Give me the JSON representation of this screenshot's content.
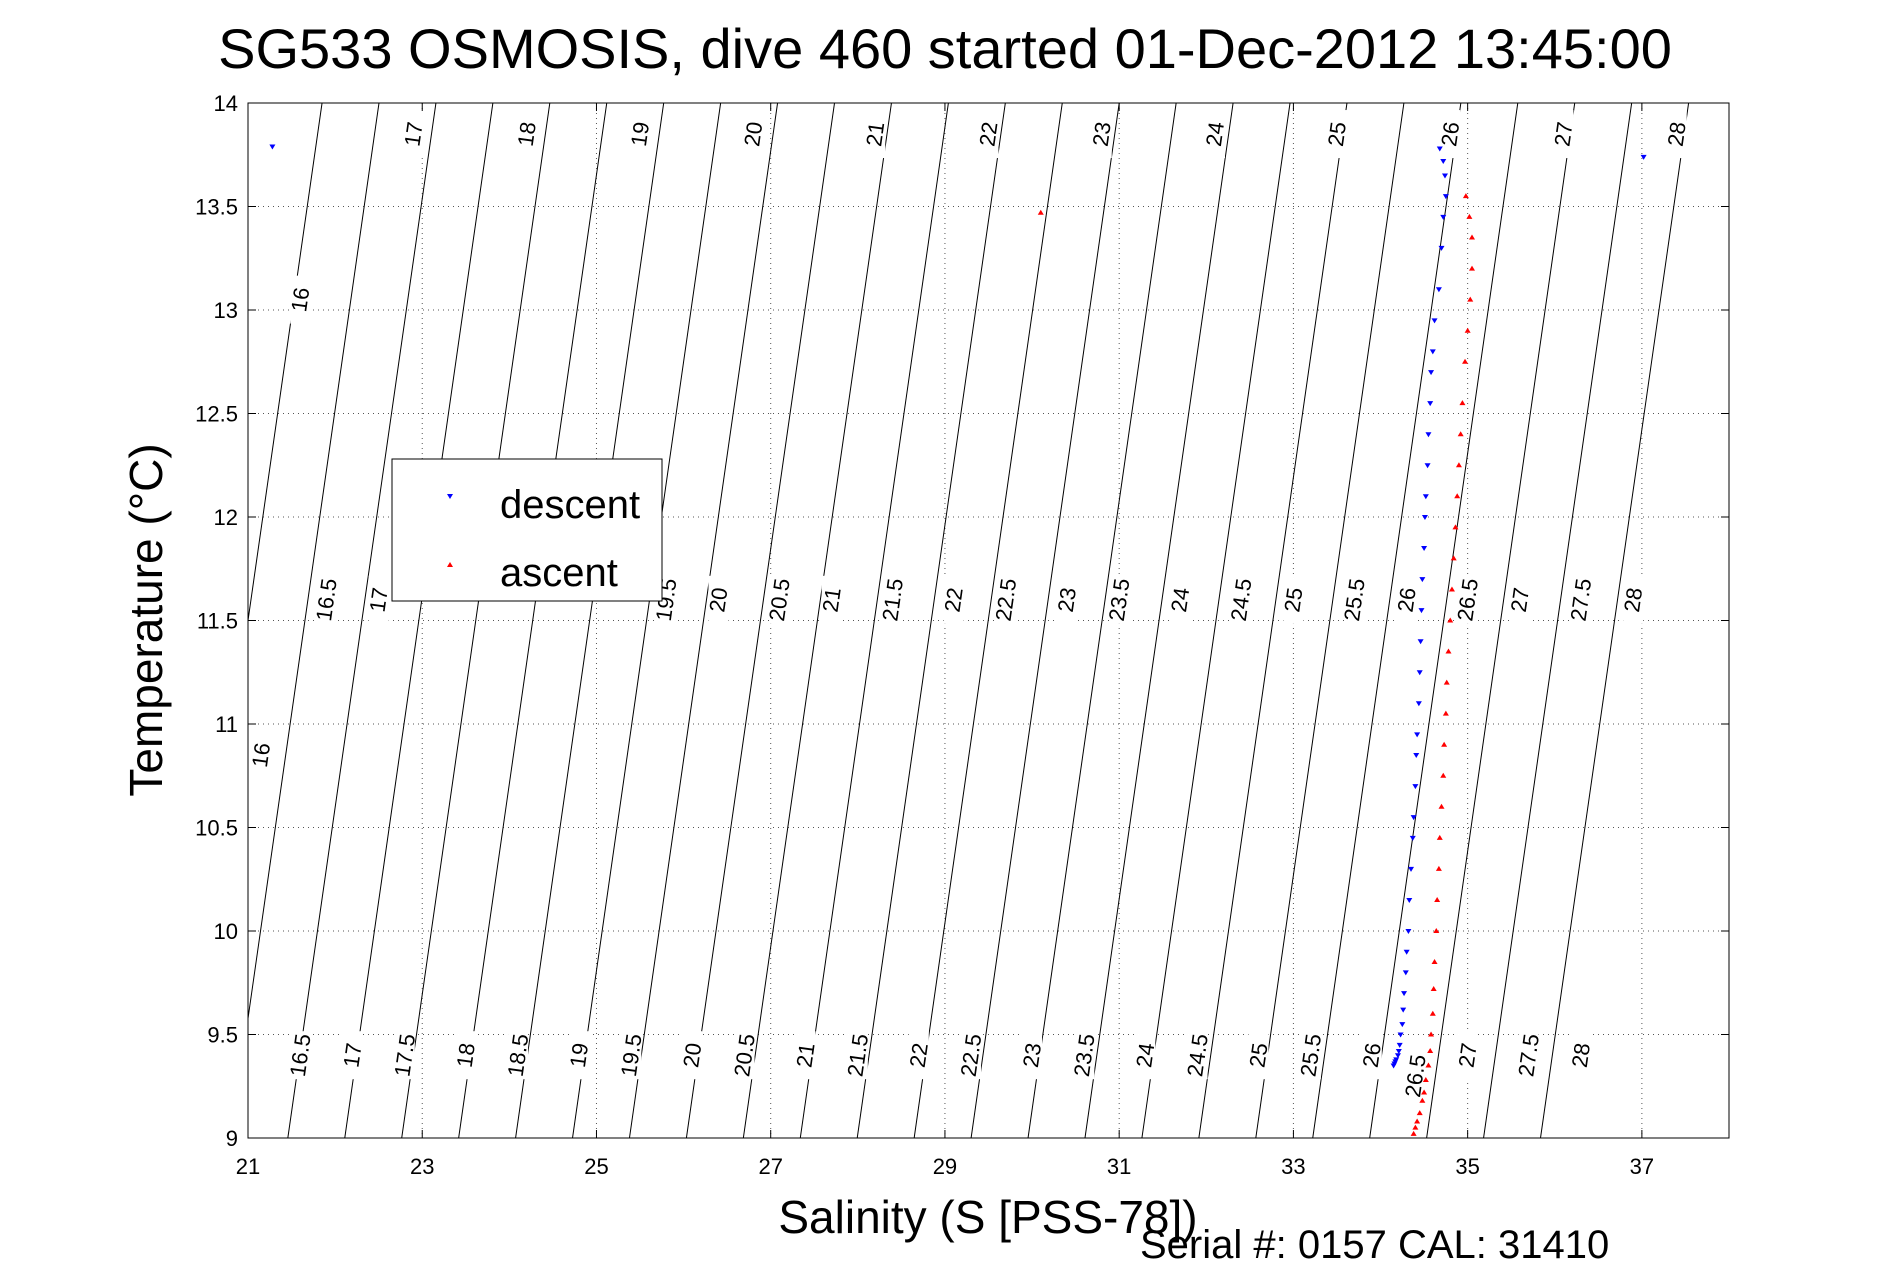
{
  "chart_data": {
    "type": "scatter",
    "title": "SG533 OSMOSIS, dive 460 started 01-Dec-2012 13:45:00",
    "xlabel": "Salinity (S [PSS-78])",
    "ylabel": "Temperature (°C)",
    "xlim": [
      21,
      38
    ],
    "ylim": [
      9,
      14
    ],
    "xticks": [
      21,
      23,
      25,
      27,
      29,
      31,
      33,
      35,
      37
    ],
    "xtick_labels": [
      "21",
      "23",
      "25",
      "27",
      "29",
      "31",
      "33",
      "35",
      "37"
    ],
    "yticks": [
      9,
      9.5,
      10,
      10.5,
      11,
      11.5,
      12,
      12.5,
      13,
      13.5,
      14
    ],
    "ytick_labels": [
      "9",
      "9.5",
      "10",
      "10.5",
      "11",
      "11.5",
      "12",
      "12.5",
      "13",
      "13.5",
      "14"
    ],
    "grid": true,
    "legend_position": "center-left",
    "footnote": "Serial #: 0157  CAL: 31410",
    "isopycnals": {
      "levels": [
        16,
        16.5,
        17,
        17.5,
        18,
        18.5,
        19,
        19.5,
        20,
        20.5,
        21,
        21.5,
        22,
        22.5,
        23,
        23.5,
        24,
        24.5,
        25,
        25.5,
        26,
        26.5,
        27,
        27.5,
        28
      ],
      "labels": [
        {
          "text": "16",
          "x": 21.6,
          "y": 13.05
        },
        {
          "text": "17",
          "x": 22.9,
          "y": 13.85
        },
        {
          "text": "18",
          "x": 24.2,
          "y": 13.85
        },
        {
          "text": "19",
          "x": 25.5,
          "y": 13.85
        },
        {
          "text": "20",
          "x": 26.8,
          "y": 13.85
        },
        {
          "text": "21",
          "x": 28.2,
          "y": 13.85
        },
        {
          "text": "22",
          "x": 29.5,
          "y": 13.85
        },
        {
          "text": "23",
          "x": 30.8,
          "y": 13.85
        },
        {
          "text": "24",
          "x": 32.1,
          "y": 13.85
        },
        {
          "text": "25",
          "x": 33.5,
          "y": 13.85
        },
        {
          "text": "26",
          "x": 34.8,
          "y": 13.85
        },
        {
          "text": "27",
          "x": 36.1,
          "y": 13.85
        },
        {
          "text": "28",
          "x": 37.4,
          "y": 13.85
        },
        {
          "text": "16.5",
          "x": 21.9,
          "y": 11.6
        },
        {
          "text": "17",
          "x": 22.5,
          "y": 11.6
        },
        {
          "text": "19.5",
          "x": 25.8,
          "y": 11.6
        },
        {
          "text": "20",
          "x": 26.4,
          "y": 11.6
        },
        {
          "text": "20.5",
          "x": 27.1,
          "y": 11.6
        },
        {
          "text": "21",
          "x": 27.7,
          "y": 11.6
        },
        {
          "text": "21.5",
          "x": 28.4,
          "y": 11.6
        },
        {
          "text": "22",
          "x": 29.1,
          "y": 11.6
        },
        {
          "text": "22.5",
          "x": 29.7,
          "y": 11.6
        },
        {
          "text": "23",
          "x": 30.4,
          "y": 11.6
        },
        {
          "text": "23.5",
          "x": 31.0,
          "y": 11.6
        },
        {
          "text": "24",
          "x": 31.7,
          "y": 11.6
        },
        {
          "text": "24.5",
          "x": 32.4,
          "y": 11.6
        },
        {
          "text": "25",
          "x": 33.0,
          "y": 11.6
        },
        {
          "text": "25.5",
          "x": 33.7,
          "y": 11.6
        },
        {
          "text": "26",
          "x": 34.3,
          "y": 11.6
        },
        {
          "text": "26.5",
          "x": 35.0,
          "y": 11.6
        },
        {
          "text": "27",
          "x": 35.6,
          "y": 11.6
        },
        {
          "text": "27.5",
          "x": 36.3,
          "y": 11.6
        },
        {
          "text": "28",
          "x": 36.9,
          "y": 11.6
        },
        {
          "text": "16",
          "x": 21.15,
          "y": 10.85
        },
        {
          "text": "16.5",
          "x": 21.6,
          "y": 9.4
        },
        {
          "text": "17",
          "x": 22.2,
          "y": 9.4
        },
        {
          "text": "17.5",
          "x": 22.8,
          "y": 9.4
        },
        {
          "text": "18",
          "x": 23.5,
          "y": 9.4
        },
        {
          "text": "18.5",
          "x": 24.1,
          "y": 9.4
        },
        {
          "text": "19",
          "x": 24.8,
          "y": 9.4
        },
        {
          "text": "19.5",
          "x": 25.4,
          "y": 9.4
        },
        {
          "text": "20",
          "x": 26.1,
          "y": 9.4
        },
        {
          "text": "20.5",
          "x": 26.7,
          "y": 9.4
        },
        {
          "text": "21",
          "x": 27.4,
          "y": 9.4
        },
        {
          "text": "21.5",
          "x": 28.0,
          "y": 9.4
        },
        {
          "text": "22",
          "x": 28.7,
          "y": 9.4
        },
        {
          "text": "22.5",
          "x": 29.3,
          "y": 9.4
        },
        {
          "text": "23",
          "x": 30.0,
          "y": 9.4
        },
        {
          "text": "23.5",
          "x": 30.6,
          "y": 9.4
        },
        {
          "text": "24",
          "x": 31.3,
          "y": 9.4
        },
        {
          "text": "24.5",
          "x": 31.9,
          "y": 9.4
        },
        {
          "text": "25",
          "x": 32.6,
          "y": 9.4
        },
        {
          "text": "25.5",
          "x": 33.2,
          "y": 9.4
        },
        {
          "text": "26",
          "x": 33.9,
          "y": 9.4
        },
        {
          "text": "26.5",
          "x": 34.4,
          "y": 9.3
        },
        {
          "text": "27",
          "x": 35.0,
          "y": 9.4
        },
        {
          "text": "27.5",
          "x": 35.7,
          "y": 9.4
        },
        {
          "text": "28",
          "x": 36.3,
          "y": 9.4
        }
      ]
    },
    "series": [
      {
        "name": "descent",
        "color": "#0000ff",
        "marker": "triangle-down",
        "x": [
          34.68,
          34.72,
          34.74,
          34.75,
          34.72,
          34.7,
          34.67,
          34.62,
          34.6,
          34.58,
          34.57,
          34.55,
          34.54,
          34.52,
          34.51,
          34.5,
          34.48,
          34.47,
          34.46,
          34.45,
          34.44,
          34.42,
          34.41,
          34.4,
          34.38,
          34.37,
          34.35,
          34.33,
          34.32,
          34.3,
          34.29,
          34.27,
          34.26,
          34.25,
          34.23,
          34.22,
          34.21,
          34.2,
          34.18,
          34.17,
          34.16,
          34.15,
          21.28,
          37.02
        ],
        "y": [
          13.78,
          13.72,
          13.65,
          13.55,
          13.45,
          13.3,
          13.1,
          12.95,
          12.8,
          12.7,
          12.55,
          12.4,
          12.25,
          12.1,
          12.0,
          11.85,
          11.7,
          11.55,
          11.4,
          11.25,
          11.1,
          10.95,
          10.85,
          10.7,
          10.55,
          10.45,
          10.3,
          10.15,
          10.0,
          9.9,
          9.8,
          9.7,
          9.62,
          9.55,
          9.5,
          9.45,
          9.42,
          9.4,
          9.38,
          9.37,
          9.36,
          9.35,
          13.79,
          13.74
        ]
      },
      {
        "name": "ascent",
        "color": "#ff0000",
        "marker": "triangle-up",
        "x": [
          34.98,
          35.02,
          35.05,
          35.05,
          35.03,
          35.0,
          34.97,
          34.94,
          34.92,
          34.9,
          34.88,
          34.86,
          34.84,
          34.82,
          34.8,
          34.78,
          34.76,
          34.75,
          34.73,
          34.72,
          34.7,
          34.68,
          34.67,
          34.65,
          34.64,
          34.62,
          34.61,
          34.6,
          34.58,
          34.57,
          34.55,
          34.52,
          34.5,
          34.48,
          34.45,
          34.42,
          34.4,
          34.38,
          30.1
        ],
        "y": [
          13.55,
          13.45,
          13.35,
          13.2,
          13.05,
          12.9,
          12.75,
          12.55,
          12.4,
          12.25,
          12.1,
          11.95,
          11.8,
          11.65,
          11.5,
          11.35,
          11.2,
          11.05,
          10.9,
          10.75,
          10.6,
          10.45,
          10.3,
          10.15,
          10.0,
          9.85,
          9.72,
          9.6,
          9.5,
          9.42,
          9.35,
          9.28,
          9.22,
          9.18,
          9.12,
          9.08,
          9.05,
          9.02,
          13.47
        ]
      }
    ]
  }
}
